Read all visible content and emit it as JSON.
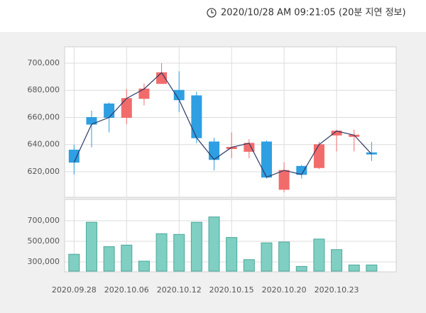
{
  "header": {
    "timestamp": "2020/10/28 AM 09:21:05 (20분 지연 정보)"
  },
  "chart_data": [
    {
      "type": "candlestick",
      "categories": [
        "2020.09.28",
        null,
        null,
        "2020.10.06",
        null,
        null,
        "2020.10.12",
        null,
        null,
        "2020.10.15",
        null,
        null,
        "2020.10.20",
        null,
        null,
        "2020.10.23",
        null,
        null
      ],
      "open": [
        636000,
        660000,
        670000,
        660000,
        674000,
        685000,
        680000,
        676000,
        642000,
        637000,
        635000,
        642000,
        607000,
        624000,
        623000,
        647000,
        646000,
        634000
      ],
      "high": [
        640000,
        665000,
        671000,
        681000,
        685000,
        700000,
        694000,
        679000,
        645000,
        649000,
        644000,
        643000,
        627000,
        625000,
        642000,
        651000,
        651000,
        642000
      ],
      "low": [
        618000,
        638000,
        649000,
        655000,
        669000,
        685000,
        664000,
        641000,
        621000,
        630000,
        630000,
        615000,
        605000,
        615000,
        622000,
        635000,
        635000,
        628000
      ],
      "close": [
        627000,
        655000,
        660000,
        674000,
        681000,
        693000,
        673000,
        645000,
        629000,
        638000,
        641000,
        616000,
        621000,
        618000,
        640000,
        650000,
        647000,
        633000
      ],
      "ylim": [
        601700,
        711500
      ],
      "yticks": [
        {
          "value": 620000,
          "label": "620,000"
        },
        {
          "value": 640000,
          "label": "640,000"
        },
        {
          "value": 660000,
          "label": "660,000"
        },
        {
          "value": 680000,
          "label": "680,000"
        },
        {
          "value": 700000,
          "label": "700,000"
        }
      ],
      "up_color": "#f26b6b",
      "down_color": "#2e9fe2",
      "line_color": "#2d3a66",
      "grid": true
    },
    {
      "type": "bar",
      "values": [
        374000,
        685000,
        448000,
        463000,
        307000,
        574000,
        567000,
        685000,
        737000,
        537000,
        322000,
        485000,
        493000,
        256000,
        522000,
        419000,
        270000,
        270000
      ],
      "ylim": [
        210000,
        900000
      ],
      "yticks": [
        {
          "value": 300000,
          "label": "300,000"
        },
        {
          "value": 500000,
          "label": "500,000"
        },
        {
          "value": 700000,
          "label": "700,000"
        }
      ],
      "color": "#7fcfc3",
      "grid": true
    }
  ]
}
